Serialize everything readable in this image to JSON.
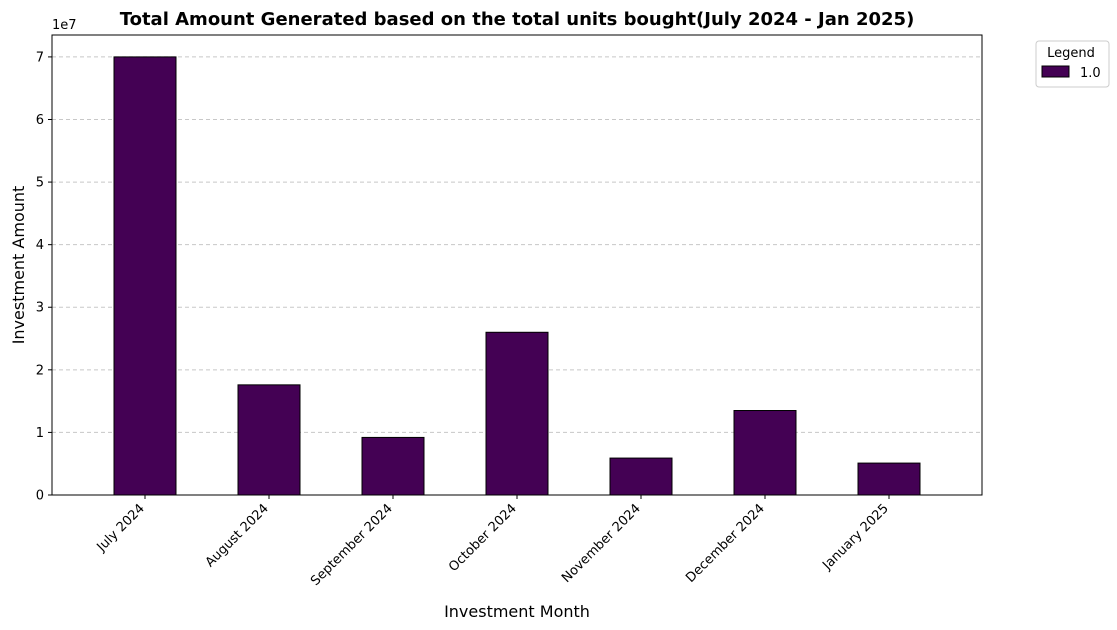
{
  "chart_data": {
    "type": "bar",
    "title": "Total Amount Generated based on the total units bought(July 2024 - Jan 2025)",
    "xlabel": "Investment Month",
    "ylabel": "Investment Amount",
    "y_multiplier_label": "1e7",
    "categories": [
      "July 2024",
      "August 2024",
      "September 2024",
      "October 2024",
      "November 2024",
      "December 2024",
      "January 2025"
    ],
    "series": [
      {
        "name": "1.0",
        "values": [
          70000000,
          17600000,
          9200000,
          26000000,
          5900000,
          13500000,
          5100000
        ]
      }
    ],
    "ylim": [
      0,
      73500000
    ],
    "yticks": [
      0,
      10000000,
      20000000,
      30000000,
      40000000,
      50000000,
      60000000,
      70000000
    ],
    "ytick_labels": [
      "0",
      "1",
      "2",
      "3",
      "4",
      "5",
      "6",
      "7"
    ],
    "grid": "horizontal dashed",
    "legend": {
      "title": "Legend",
      "placement": "outside top-right"
    },
    "colors": {
      "bar": "#440154",
      "bar_edge": "#000000",
      "grid": "#c8c8c8"
    }
  }
}
